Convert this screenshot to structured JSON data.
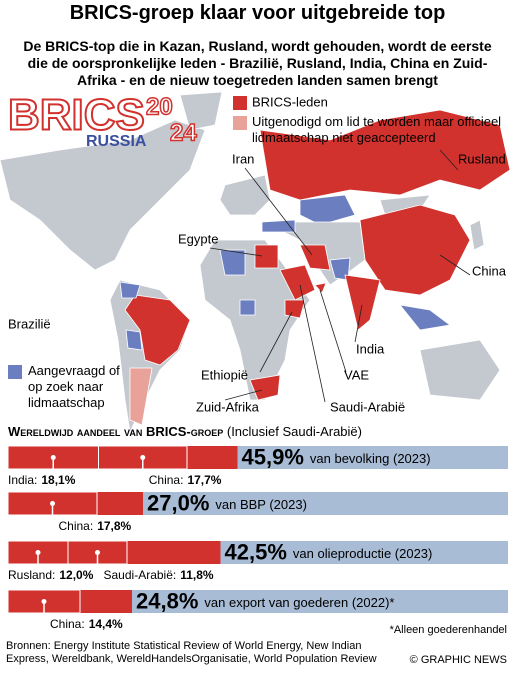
{
  "header": {
    "title": "BRICS-groep klaar voor uitgebreide top",
    "subtitle": "De BRICS-top die in Kazan, Rusland, wordt gehouden, wordt de eerste die de oorspronkelijke leden - Brazilië, Rusland, India, China en Zuid-Afrika - en de nieuw toegetreden landen samen brengt"
  },
  "logo": {
    "word": "BRICS",
    "year_top": "20",
    "year_bottom": "24",
    "country": "RUSSIA"
  },
  "legend": {
    "members": "BRICS-leden",
    "invited": "Uitgenodigd om lid te worden maar officieel lidmaatschap niet geaccepteerd",
    "applied": "Aangevraagd of op zoek naar lidmaatschap"
  },
  "map_labels": [
    "Iran",
    "Rusland",
    "Egypte",
    "China",
    "Brazilië",
    "India",
    "Ethiopië",
    "VAE",
    "Zuid-Afrika",
    "Saudi-Arabië"
  ],
  "shares": {
    "heading": "Wereldwijd aandeel van BRICS-groep",
    "note": "(Inclusief Saudi-Arabië)",
    "xlim": [
      0,
      100
    ],
    "bars": [
      {
        "value": 45.9,
        "label": "45,9%",
        "caption": "van bevolking (2023)",
        "parts": [
          {
            "name": "India:",
            "value": 18.1,
            "label": "18,1%"
          },
          {
            "name": "China:",
            "value": 17.7,
            "label": "17,7%"
          }
        ]
      },
      {
        "value": 27.0,
        "label": "27,0%",
        "caption": "van BBP (2023)",
        "parts": [
          {
            "name": "China:",
            "value": 17.8,
            "label": "17,8%"
          }
        ]
      },
      {
        "value": 42.5,
        "label": "42,5%",
        "caption": "van olieproductie (2023)",
        "parts": [
          {
            "name": "Rusland:",
            "value": 12.0,
            "label": "12,0%"
          },
          {
            "name": "Saudi-Arabië:",
            "value": 11.8,
            "label": "11,8%"
          }
        ]
      },
      {
        "value": 24.8,
        "label": "24,8%",
        "caption": "van export van goederen (2022)*",
        "parts": [
          {
            "name": "China:",
            "value": 14.4,
            "label": "14,4%"
          }
        ]
      }
    ],
    "footnote": "*Alleen goederenhandel"
  },
  "footer": {
    "sources": "Bronnen: Energy Institute Statistical Review of World Energy, New Indian Express, Wereldbank, WereldHandelsOrganisatie, World Population Review",
    "credit": "© GRAPHIC NEWS"
  }
}
